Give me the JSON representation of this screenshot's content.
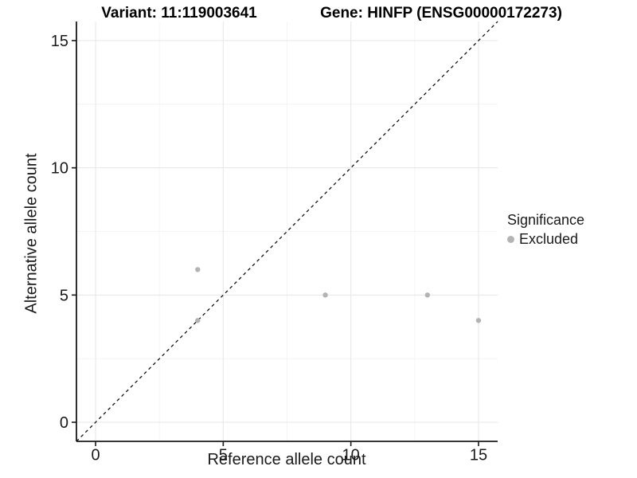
{
  "header": {
    "variant_title": "Variant: 11:119003641",
    "gene_title": "Gene: HINFP (ENSG00000172273)"
  },
  "legend": {
    "title": "Significance",
    "items": [
      {
        "label": "Excluded",
        "color": "#b3b3b3"
      }
    ]
  },
  "chart_data": {
    "type": "scatter",
    "title_left": "Variant: 11:119003641",
    "title_right": "Gene: HINFP (ENSG00000172273)",
    "xlabel": "Reference allele count",
    "ylabel": "Alternative allele count",
    "xlim": [
      -0.75,
      15.75
    ],
    "ylim": [
      -0.75,
      15.75
    ],
    "x_ticks": [
      0,
      5,
      10,
      15
    ],
    "y_ticks": [
      0,
      5,
      10,
      15
    ],
    "x_minor_ticks": [
      2.5,
      7.5,
      12.5
    ],
    "y_minor_ticks": [
      2.5,
      7.5,
      12.5
    ],
    "grid": true,
    "legend_position": "right",
    "series": [
      {
        "name": "Excluded",
        "color": "#b3b3b3",
        "marker_radius": 3.2,
        "points": [
          {
            "x": 4,
            "y": 4
          },
          {
            "x": 4,
            "y": 6
          },
          {
            "x": 9,
            "y": 5
          },
          {
            "x": 13,
            "y": 5
          },
          {
            "x": 15,
            "y": 4
          }
        ]
      }
    ],
    "reference_line": {
      "slope": 1,
      "intercept": 0,
      "style": "dashed",
      "color": "#111111"
    },
    "colors": {
      "axis_line": "#1a1a1a",
      "grid_major": "#e9e9e9",
      "grid_minor": "#f4f4f4",
      "tick_mark": "#1a1a1a",
      "tick_text": "#1a1a1a",
      "point": "#b3b3b3"
    }
  }
}
